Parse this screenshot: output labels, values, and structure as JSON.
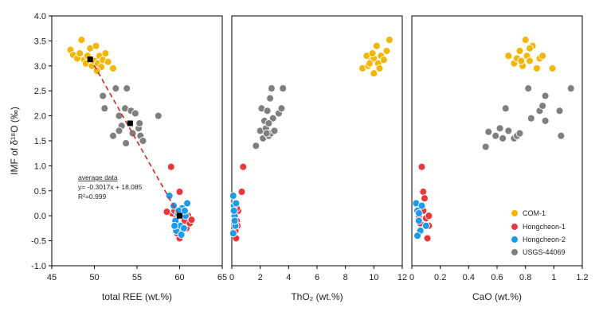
{
  "chart_data": {
    "type": "scatter",
    "ylabel": "IMF of δ¹⁸O (‰)",
    "ylim": [
      -1.0,
      4.0
    ],
    "yticks": [
      -1.0,
      -0.5,
      0.0,
      0.5,
      1.0,
      1.5,
      2.0,
      2.5,
      3.0,
      3.5,
      4.0
    ],
    "ytick_labels": [
      "-1.0",
      "-0.5",
      "0.0",
      "0.5",
      "1.0",
      "1.5",
      "2.0",
      "2.5",
      "3.0",
      "3.5",
      "4.0"
    ],
    "legend": {
      "position": "bottom-right",
      "entries": [
        {
          "name": "COM-1",
          "color": "#F2B705"
        },
        {
          "name": "Hongcheon-1",
          "color": "#E8383D"
        },
        {
          "name": "Hongcheon-2",
          "color": "#1E9BE8"
        },
        {
          "name": "USGS-44069",
          "color": "#7F7F7F"
        }
      ]
    },
    "panels": [
      {
        "id": "ree",
        "xlabel": "total REE (wt.%)",
        "xlim": [
          45,
          65
        ],
        "xticks": [
          45,
          50,
          55,
          60,
          65
        ],
        "xtick_labels": [
          "45",
          "50",
          "55",
          "60",
          "65"
        ],
        "series": [
          {
            "name": "COM-1",
            "points": [
              [
                47.2,
                3.32
              ],
              [
                47.5,
                3.22
              ],
              [
                48.0,
                3.15
              ],
              [
                48.3,
                3.25
              ],
              [
                48.5,
                3.52
              ],
              [
                48.8,
                3.12
              ],
              [
                49.0,
                3.05
              ],
              [
                49.2,
                3.2
              ],
              [
                49.5,
                3.35
              ],
              [
                49.7,
                3.0
              ],
              [
                50.0,
                3.1
              ],
              [
                50.2,
                3.4
              ],
              [
                50.4,
                3.05
              ],
              [
                50.6,
                3.2
              ],
              [
                50.8,
                2.98
              ],
              [
                51.0,
                3.12
              ],
              [
                51.3,
                3.25
              ],
              [
                51.6,
                3.08
              ],
              [
                52.2,
                2.95
              ],
              [
                50.3,
                2.9
              ]
            ]
          },
          {
            "name": "USGS-44069",
            "points": [
              [
                51.0,
                2.4
              ],
              [
                51.2,
                2.15
              ],
              [
                52.5,
                2.55
              ],
              [
                52.9,
                2.0
              ],
              [
                53.2,
                1.8
              ],
              [
                53.6,
                2.15
              ],
              [
                53.8,
                2.55
              ],
              [
                54.3,
                2.1
              ],
              [
                54.5,
                1.65
              ],
              [
                54.8,
                2.05
              ],
              [
                55.2,
                1.75
              ],
              [
                55.4,
                1.6
              ],
              [
                55.7,
                1.5
              ],
              [
                52.2,
                1.6
              ],
              [
                52.9,
                1.7
              ],
              [
                53.7,
                1.45
              ],
              [
                57.5,
                2.0
              ],
              [
                55.3,
                1.85
              ]
            ]
          },
          {
            "name": "Hongcheon-1",
            "points": [
              [
                59.0,
                0.98
              ],
              [
                59.1,
                0.05
              ],
              [
                59.4,
                0.1
              ],
              [
                59.6,
                -0.05
              ],
              [
                59.8,
                -0.2
              ],
              [
                60.0,
                0.48
              ],
              [
                60.2,
                -0.3
              ],
              [
                60.4,
                0.05
              ],
              [
                60.6,
                -0.1
              ],
              [
                60.8,
                -0.25
              ],
              [
                61.0,
                0.0
              ],
              [
                61.2,
                -0.15
              ],
              [
                61.4,
                -0.08
              ],
              [
                60.0,
                -0.45
              ],
              [
                58.8,
                0.38
              ],
              [
                58.5,
                0.08
              ],
              [
                59.7,
                -0.35
              ]
            ]
          },
          {
            "name": "Hongcheon-2",
            "points": [
              [
                58.8,
                0.4
              ],
              [
                59.3,
                0.2
              ],
              [
                59.5,
                -0.1
              ],
              [
                59.6,
                -0.3
              ],
              [
                59.8,
                0.05
              ],
              [
                60.1,
                -0.2
              ],
              [
                60.3,
                0.15
              ],
              [
                60.5,
                -0.25
              ],
              [
                60.7,
                0.0
              ],
              [
                60.9,
                0.25
              ],
              [
                60.2,
                -0.38
              ],
              [
                59.9,
                0.1
              ],
              [
                60.6,
                0.1
              ],
              [
                59.4,
                -0.2
              ]
            ]
          }
        ],
        "averages": [
          [
            49.5,
            3.13
          ],
          [
            54.2,
            1.85
          ],
          [
            60.0,
            0.0
          ]
        ],
        "fit": {
          "slope": -0.3017,
          "intercept": 18.085,
          "from": 49.5,
          "to": 60.0,
          "color": "#CC2B2B"
        },
        "annotation": {
          "title": "average data",
          "equation": "y= -0.3017x + 18.085",
          "r2": "R²=0.999"
        }
      },
      {
        "id": "tho2",
        "xlabel": "ThO₂ (wt.%)",
        "xlim": [
          0,
          12
        ],
        "xticks": [
          0,
          2,
          4,
          6,
          8,
          10,
          12
        ],
        "xtick_labels": [
          "0",
          "2",
          "4",
          "6",
          "8",
          "10",
          "12"
        ],
        "series": [
          {
            "name": "COM-1",
            "points": [
              [
                9.2,
                2.95
              ],
              [
                9.5,
                3.2
              ],
              [
                9.6,
                3.0
              ],
              [
                9.8,
                3.1
              ],
              [
                10.0,
                3.15
              ],
              [
                10.0,
                2.85
              ],
              [
                10.2,
                3.4
              ],
              [
                10.3,
                3.05
              ],
              [
                10.5,
                3.2
              ],
              [
                10.7,
                3.12
              ],
              [
                10.9,
                3.3
              ],
              [
                11.1,
                3.52
              ],
              [
                10.4,
                2.95
              ],
              [
                9.9,
                3.25
              ],
              [
                9.7,
                3.05
              ]
            ]
          },
          {
            "name": "USGS-44069",
            "points": [
              [
                1.7,
                1.4
              ],
              [
                2.0,
                1.7
              ],
              [
                2.1,
                2.15
              ],
              [
                2.2,
                1.55
              ],
              [
                2.3,
                1.9
              ],
              [
                2.4,
                1.75
              ],
              [
                2.5,
                2.1
              ],
              [
                2.6,
                1.6
              ],
              [
                2.7,
                2.35
              ],
              [
                2.75,
                1.65
              ],
              [
                2.8,
                2.55
              ],
              [
                2.9,
                1.95
              ],
              [
                3.0,
                1.7
              ],
              [
                3.3,
                2.05
              ],
              [
                3.6,
                2.55
              ],
              [
                3.5,
                2.15
              ],
              [
                2.6,
                1.85
              ],
              [
                2.45,
                1.65
              ]
            ]
          },
          {
            "name": "Hongcheon-1",
            "points": [
              [
                0.2,
                0.0
              ],
              [
                0.3,
                0.05
              ],
              [
                0.35,
                -0.1
              ],
              [
                0.4,
                -0.2
              ],
              [
                0.25,
                -0.3
              ],
              [
                0.45,
                0.1
              ],
              [
                0.3,
                -0.45
              ],
              [
                0.7,
                0.48
              ],
              [
                0.8,
                0.98
              ],
              [
                0.35,
                0.15
              ]
            ]
          },
          {
            "name": "Hongcheon-2",
            "points": [
              [
                0.1,
                0.4
              ],
              [
                0.15,
                0.2
              ],
              [
                0.2,
                0.0
              ],
              [
                0.25,
                -0.2
              ],
              [
                0.1,
                -0.35
              ],
              [
                0.3,
                0.25
              ],
              [
                0.2,
                -0.1
              ],
              [
                0.15,
                0.1
              ]
            ]
          }
        ]
      },
      {
        "id": "cao",
        "xlabel": "CaO (wt.%)",
        "xlim": [
          0,
          1.2
        ],
        "xticks": [
          0,
          0.2,
          0.4,
          0.6,
          0.8,
          1.0,
          1.2
        ],
        "xtick_labels": [
          "0",
          "0.2",
          "0.4",
          "0.6",
          "0.8",
          "1",
          "1.2"
        ],
        "series": [
          {
            "name": "COM-1",
            "points": [
              [
                0.68,
                3.2
              ],
              [
                0.72,
                3.05
              ],
              [
                0.74,
                3.15
              ],
              [
                0.76,
                3.3
              ],
              [
                0.78,
                3.0
              ],
              [
                0.8,
                3.52
              ],
              [
                0.81,
                3.2
              ],
              [
                0.83,
                3.1
              ],
              [
                0.85,
                3.4
              ],
              [
                0.88,
                2.95
              ],
              [
                0.9,
                3.15
              ],
              [
                0.92,
                3.2
              ],
              [
                0.99,
                2.95
              ],
              [
                0.77,
                3.1
              ],
              [
                0.83,
                3.35
              ]
            ]
          },
          {
            "name": "USGS-44069",
            "points": [
              [
                0.52,
                1.38
              ],
              [
                0.54,
                1.68
              ],
              [
                0.59,
                1.6
              ],
              [
                0.62,
                1.75
              ],
              [
                0.64,
                1.55
              ],
              [
                0.66,
                2.15
              ],
              [
                0.68,
                1.7
              ],
              [
                0.72,
                1.55
              ],
              [
                0.74,
                1.6
              ],
              [
                0.76,
                1.65
              ],
              [
                0.82,
                2.55
              ],
              [
                0.84,
                1.95
              ],
              [
                0.9,
                2.1
              ],
              [
                0.92,
                2.2
              ],
              [
                0.94,
                1.9
              ],
              [
                0.94,
                2.4
              ],
              [
                1.04,
                2.1
              ],
              [
                1.05,
                1.6
              ],
              [
                1.12,
                2.55
              ]
            ]
          },
          {
            "name": "Hongcheon-1",
            "points": [
              [
                0.07,
                0.98
              ],
              [
                0.08,
                0.48
              ],
              [
                0.09,
                0.35
              ],
              [
                0.05,
                0.0
              ],
              [
                0.1,
                -0.05
              ],
              [
                0.12,
                -0.2
              ],
              [
                0.11,
                -0.45
              ],
              [
                0.06,
                -0.15
              ],
              [
                0.08,
                0.1
              ],
              [
                0.12,
                0.0
              ]
            ]
          },
          {
            "name": "Hongcheon-2",
            "points": [
              [
                0.03,
                0.25
              ],
              [
                0.04,
                0.1
              ],
              [
                0.05,
                -0.1
              ],
              [
                0.06,
                -0.3
              ],
              [
                0.04,
                -0.4
              ],
              [
                0.07,
                0.2
              ],
              [
                0.1,
                -0.2
              ],
              [
                0.05,
                0.05
              ]
            ]
          }
        ]
      }
    ]
  }
}
